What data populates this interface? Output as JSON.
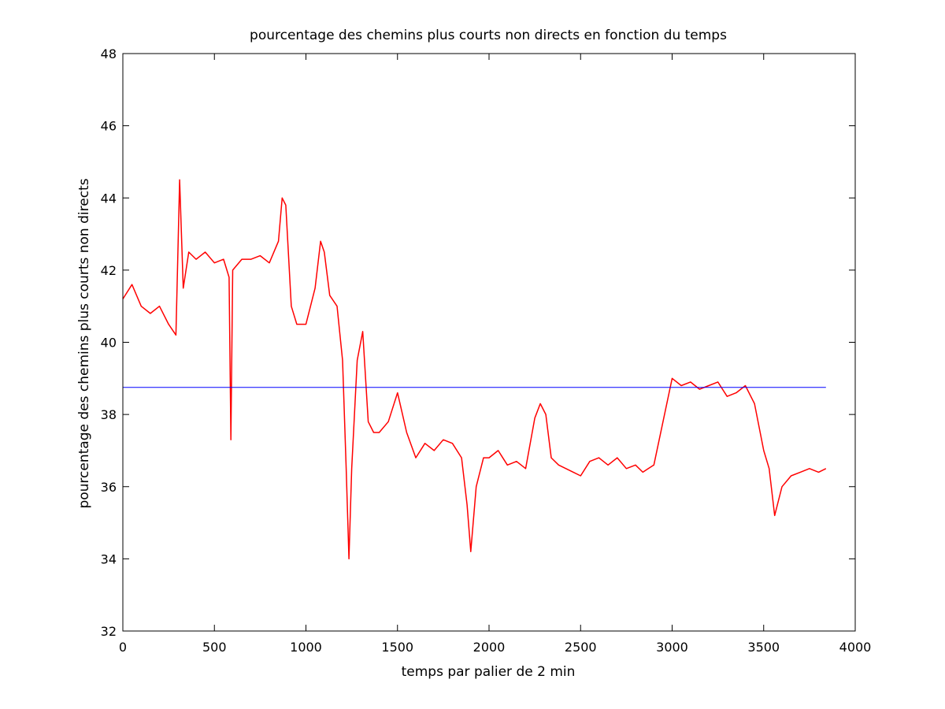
{
  "chart_data": {
    "type": "line",
    "title": "pourcentage des chemins plus courts non directs en fonction du temps",
    "xlabel": "temps par palier de 2 min",
    "ylabel": "pourcentage des chemins plus courts non directs",
    "xlim": [
      0,
      4000
    ],
    "ylim": [
      32,
      48
    ],
    "xticks": [
      0,
      500,
      1000,
      1500,
      2000,
      2500,
      3000,
      3500,
      4000
    ],
    "yticks": [
      32,
      34,
      36,
      38,
      40,
      42,
      44,
      46,
      48
    ],
    "grid": false,
    "legend": "none",
    "colors": {
      "series": "#ff0000",
      "mean": "#0000ff",
      "axes": "#000000"
    },
    "series": [
      {
        "kind": "line",
        "color": "#ff0000",
        "x": [
          0,
          50,
          100,
          150,
          200,
          250,
          290,
          310,
          330,
          360,
          400,
          450,
          500,
          550,
          580,
          590,
          600,
          650,
          700,
          750,
          800,
          850,
          870,
          890,
          920,
          950,
          1000,
          1050,
          1080,
          1100,
          1130,
          1170,
          1200,
          1220,
          1235,
          1250,
          1280,
          1310,
          1340,
          1370,
          1400,
          1450,
          1500,
          1550,
          1600,
          1650,
          1700,
          1750,
          1800,
          1850,
          1880,
          1900,
          1930,
          1970,
          2000,
          2050,
          2100,
          2150,
          2200,
          2250,
          2280,
          2310,
          2340,
          2380,
          2420,
          2460,
          2500,
          2550,
          2600,
          2650,
          2700,
          2750,
          2800,
          2840,
          2870,
          2900,
          3000,
          3050,
          3100,
          3150,
          3200,
          3250,
          3300,
          3350,
          3400,
          3450,
          3500,
          3530,
          3560,
          3600,
          3650,
          3700,
          3750,
          3800,
          3840
        ],
        "y": [
          41.2,
          41.6,
          41.0,
          40.8,
          41.0,
          40.5,
          40.2,
          44.5,
          41.5,
          42.5,
          42.3,
          42.5,
          42.2,
          42.3,
          41.8,
          37.3,
          42.0,
          42.3,
          42.3,
          42.4,
          42.2,
          42.8,
          44.0,
          43.8,
          41.0,
          40.5,
          40.5,
          41.5,
          42.8,
          42.5,
          41.3,
          41.0,
          39.5,
          36.5,
          34.0,
          36.5,
          39.5,
          40.3,
          37.8,
          37.5,
          37.5,
          37.8,
          38.6,
          37.5,
          36.8,
          37.2,
          37.0,
          37.3,
          37.2,
          36.8,
          35.5,
          34.2,
          36.0,
          36.8,
          36.8,
          37.0,
          36.6,
          36.7,
          36.5,
          37.9,
          38.3,
          38.0,
          36.8,
          36.6,
          36.5,
          36.4,
          36.3,
          36.7,
          36.8,
          36.6,
          36.8,
          36.5,
          36.6,
          36.4,
          36.5,
          36.6,
          39.0,
          38.8,
          38.9,
          38.7,
          38.8,
          38.9,
          38.5,
          38.6,
          38.8,
          38.3,
          37.0,
          36.5,
          35.2,
          36.0,
          36.3,
          36.4,
          36.5,
          36.4,
          36.5
        ]
      },
      {
        "kind": "hline",
        "color": "#0000ff",
        "x": [
          0,
          3840
        ],
        "y": [
          38.75,
          38.75
        ]
      }
    ]
  }
}
